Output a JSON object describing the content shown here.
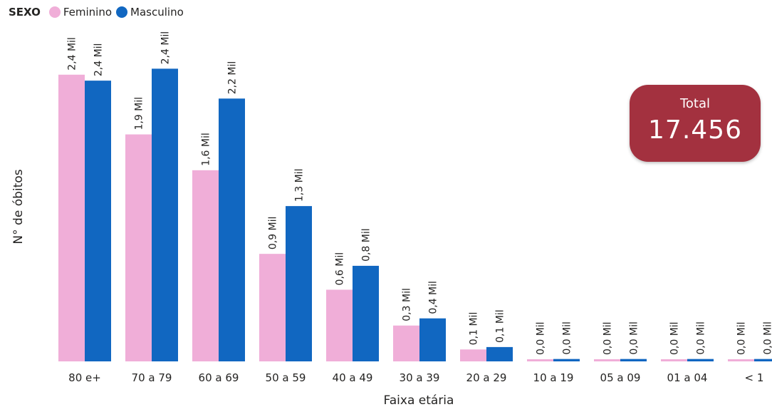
{
  "legend": {
    "title": "SEXO",
    "items": [
      {
        "label": "Feminino",
        "color": "#f0aed8"
      },
      {
        "label": "Masculino",
        "color": "#1167c1"
      }
    ]
  },
  "total_card": {
    "label": "Total",
    "value": "17.456",
    "color": "#a3313f"
  },
  "chart_data": {
    "type": "bar",
    "xlabel": "Faixa etária",
    "ylabel": "N° de óbitos",
    "categories": [
      "80 e+",
      "70 a 79",
      "60 a 69",
      "50 a 59",
      "40 a 49",
      "30 a 39",
      "20 a 29",
      "10 a 19",
      "05 a 09",
      "01 a 04",
      "< 1"
    ],
    "series": [
      {
        "name": "Feminino",
        "color": "#f0aed8",
        "values": [
          2.4,
          1.9,
          1.6,
          0.9,
          0.6,
          0.3,
          0.1,
          0.0,
          0.0,
          0.0,
          0.0
        ],
        "labels": [
          "2,4 Mil",
          "1,9 Mil",
          "1,6 Mil",
          "0,9 Mil",
          "0,6 Mil",
          "0,3 Mil",
          "0,1 Mil",
          "0,0 Mil",
          "0,0 Mil",
          "0,0 Mil",
          "0,0 Mil"
        ]
      },
      {
        "name": "Masculino",
        "color": "#1167c1",
        "values": [
          2.35,
          2.45,
          2.2,
          1.3,
          0.8,
          0.36,
          0.12,
          0.02,
          0.02,
          0.02,
          0.02
        ],
        "labels": [
          "2,4 Mil",
          "2,4 Mil",
          "2,2 Mil",
          "1,3 Mil",
          "0,8 Mil",
          "0,4 Mil",
          "0,1 Mil",
          "0,0 Mil",
          "0,0 Mil",
          "0,0 Mil",
          "0,0 Mil"
        ]
      }
    ],
    "ylim": [
      0,
      2.5
    ],
    "unit": "Mil",
    "grid": false,
    "legend_position": "top-left"
  }
}
